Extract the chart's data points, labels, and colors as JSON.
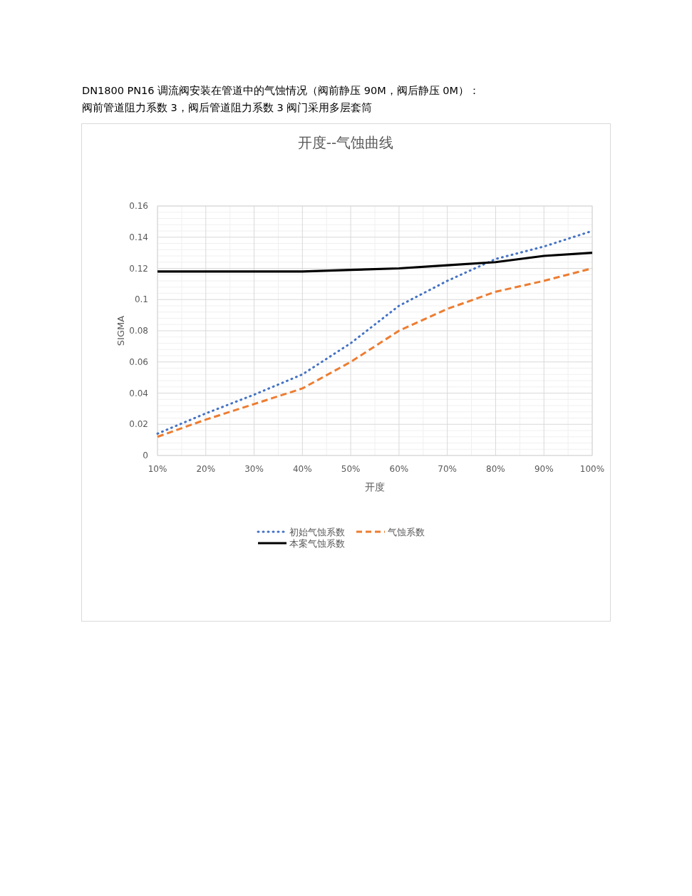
{
  "chart_data": {
    "type": "line",
    "title": "开度--气蚀曲线",
    "xlabel": "开度",
    "ylabel": "SIGMA",
    "annotations": [
      "DN1800 PN16  调流阀安装在管道中的气蚀情况（阀前静压 90M，阀后静压 0M）：",
      "阀前管道阻力系数 3，阀后管道阻力系数 3    阀门采用多层套筒"
    ],
    "categories": [
      "10%",
      "20%",
      "30%",
      "40%",
      "50%",
      "60%",
      "70%",
      "80%",
      "90%",
      "100%"
    ],
    "series": [
      {
        "name": "初始气蚀系数",
        "color": "#4472c4",
        "line_style": "dotted",
        "values": [
          0.014,
          0.027,
          0.039,
          0.052,
          0.072,
          0.096,
          0.112,
          0.126,
          0.134,
          0.144
        ]
      },
      {
        "name": "气蚀系数",
        "color": "#ed7d31",
        "line_style": "dashed",
        "values": [
          0.012,
          0.023,
          0.033,
          0.043,
          0.06,
          0.08,
          0.094,
          0.105,
          0.112,
          0.12
        ]
      },
      {
        "name": "本案气蚀系数",
        "color": "#000000",
        "line_style": "solid",
        "values": [
          0.118,
          0.118,
          0.118,
          0.118,
          0.119,
          0.12,
          0.122,
          0.124,
          0.128,
          0.13
        ]
      }
    ],
    "ylim": [
      0,
      0.16
    ],
    "yticks": [
      0,
      0.02,
      0.04,
      0.06,
      0.08,
      0.1,
      0.12,
      0.14,
      0.16
    ],
    "grid": true,
    "legend": "bottom",
    "marker": "none"
  }
}
